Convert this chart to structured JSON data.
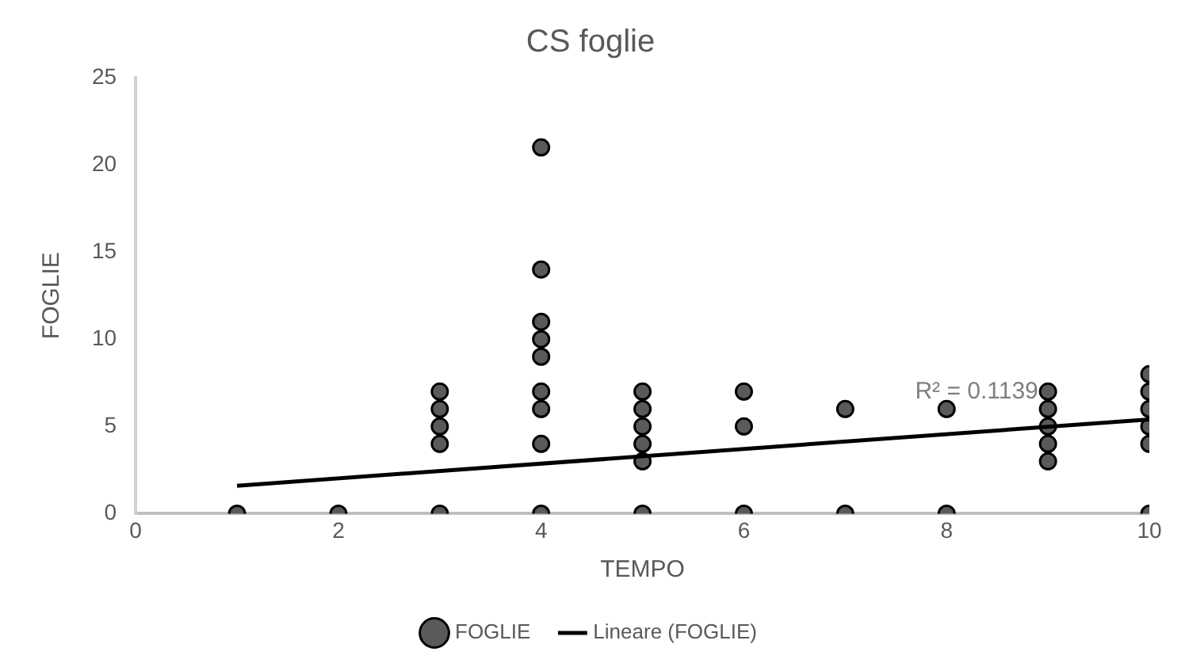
{
  "chart_data": {
    "type": "scatter",
    "title": "CS foglie",
    "xlabel": "TEMPO",
    "ylabel": "FOGLIE",
    "xlim": [
      0,
      10
    ],
    "xticks": [
      0,
      2,
      4,
      6,
      8,
      10
    ],
    "ylim": [
      0,
      25
    ],
    "yticks": [
      0,
      5,
      10,
      15,
      20,
      25
    ],
    "grid": false,
    "legend": "bottom",
    "marker": "circle",
    "series": [
      {
        "name": "FOGLIE",
        "color": "#5a5a5a",
        "x": [
          1,
          2,
          3,
          3,
          3,
          3,
          3,
          4,
          4,
          4,
          4,
          4,
          4,
          4,
          4,
          4,
          5,
          5,
          5,
          5,
          5,
          5,
          6,
          6,
          6,
          7,
          7,
          8,
          8,
          9,
          9,
          9,
          9,
          9,
          10,
          10,
          10,
          10,
          10,
          10
        ],
        "values": [
          0,
          0,
          0,
          4,
          5,
          6,
          7,
          0,
          4,
          6,
          7,
          9,
          10,
          11,
          14,
          21,
          0,
          3,
          4,
          5,
          6,
          7,
          0,
          5,
          7,
          0,
          6,
          0,
          6,
          3,
          4,
          5,
          6,
          7,
          0,
          4,
          5,
          6,
          7,
          8
        ]
      },
      {
        "name": "Lineare (FOGLIE)",
        "type": "line",
        "color": "#000000",
        "marker": "none",
        "x": [
          1,
          10
        ],
        "values": [
          1.6,
          5.4
        ]
      }
    ],
    "annotations": [
      {
        "text": "R² = 0.1139",
        "x": 9,
        "y": 5
      }
    ]
  }
}
